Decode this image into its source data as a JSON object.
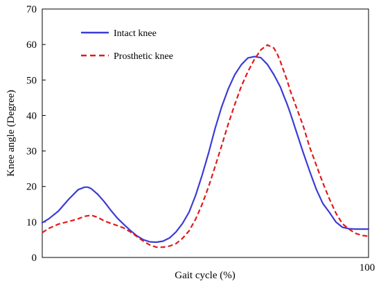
{
  "chart_data": {
    "type": "line",
    "xlabel": "Gait cycle (%)",
    "ylabel": "Knee angle (Degree)",
    "xlim": [
      0,
      100
    ],
    "ylim": [
      0,
      70
    ],
    "x_tick_labels": [
      {
        "value": 100,
        "label": "100"
      }
    ],
    "y_ticks": [
      0,
      10,
      20,
      30,
      40,
      50,
      60,
      70
    ],
    "grid": false,
    "legend_position": "top-left",
    "series": [
      {
        "name": "Intact knee",
        "color": "#3b3bd6",
        "style": "solid",
        "x": [
          0,
          2,
          5,
          8,
          11,
          13,
          14,
          15,
          17,
          19,
          21,
          23,
          25,
          27,
          29,
          31,
          33,
          35,
          37,
          39,
          41,
          43,
          45,
          47,
          49,
          51,
          53,
          55,
          57,
          59,
          61,
          63,
          65,
          67,
          69,
          71,
          73,
          74,
          75,
          76,
          78,
          80,
          82,
          84,
          86,
          88,
          90,
          92,
          94,
          96,
          98,
          100
        ],
        "values": [
          9.8,
          10.9,
          13.1,
          16.3,
          19.1,
          19.8,
          19.8,
          19.4,
          17.8,
          15.7,
          13.3,
          11.1,
          9.3,
          7.6,
          6.1,
          5.0,
          4.4,
          4.3,
          4.6,
          5.5,
          7.2,
          9.6,
          12.8,
          17.5,
          23.2,
          29.5,
          36.4,
          42.5,
          47.5,
          51.5,
          54.3,
          56.2,
          56.6,
          56.3,
          54.4,
          51.5,
          48.0,
          45.6,
          43.3,
          40.7,
          35.1,
          29.5,
          24.2,
          19.2,
          15.2,
          12.7,
          10.0,
          8.5,
          8.1,
          8.0,
          8.0,
          8.0
        ]
      },
      {
        "name": "Prosthetic knee",
        "color": "#e01a1a",
        "style": "dashed",
        "x": [
          0,
          2,
          5,
          8,
          11,
          13,
          15,
          17,
          19,
          21,
          23,
          25,
          27,
          29,
          31,
          33,
          35,
          37,
          39,
          41,
          43,
          45,
          47,
          49,
          51,
          53,
          55,
          57,
          59,
          61,
          63,
          65,
          67,
          69,
          71,
          72,
          73,
          74,
          75,
          76,
          78,
          80,
          82,
          84,
          86,
          88,
          90,
          92,
          94,
          96,
          98,
          100
        ],
        "values": [
          7.0,
          8.2,
          9.4,
          10.1,
          10.9,
          11.6,
          11.9,
          11.3,
          10.3,
          9.6,
          9.0,
          8.3,
          7.2,
          5.9,
          4.6,
          3.5,
          2.9,
          2.9,
          3.2,
          3.9,
          5.4,
          7.5,
          10.8,
          15.0,
          20.0,
          25.7,
          31.6,
          37.6,
          43.1,
          48.2,
          52.3,
          55.8,
          58.5,
          59.9,
          59.0,
          57.4,
          55.2,
          52.6,
          50.0,
          47.0,
          42.0,
          37.0,
          31.0,
          26.0,
          21.0,
          16.5,
          12.5,
          9.5,
          8.0,
          6.8,
          6.2,
          6.0
        ]
      }
    ]
  }
}
